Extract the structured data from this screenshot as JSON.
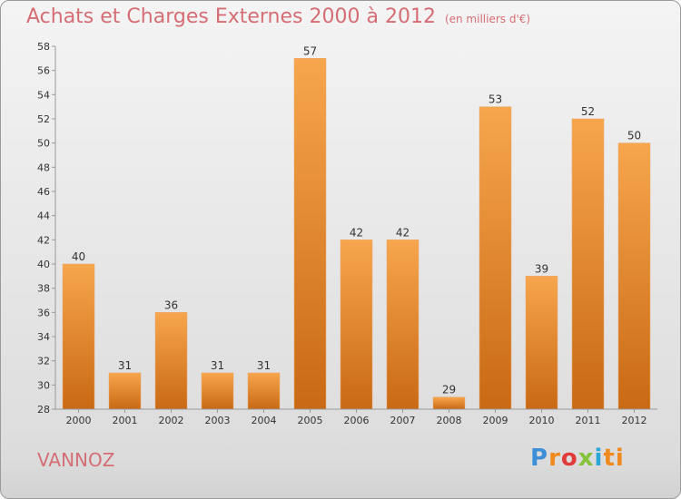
{
  "header": {
    "title": "Achats et Charges Externes 2000 à 2012",
    "subtitle": "(en milliers d'€)"
  },
  "footer": {
    "place": "VANNOZ",
    "logo": [
      "P",
      "r",
      "o",
      "x",
      "i",
      "ti"
    ]
  },
  "colors": {
    "title": "#d46e74",
    "bar_light": "#f7a64d",
    "bar_dark": "#c96914"
  },
  "chart_data": {
    "type": "bar",
    "title": "Achats et Charges Externes 2000 à 2012",
    "subtitle": "(en milliers d'€)",
    "xlabel": "",
    "ylabel": "",
    "categories": [
      "2000",
      "2001",
      "2002",
      "2003",
      "2004",
      "2005",
      "2006",
      "2007",
      "2008",
      "2009",
      "2010",
      "2011",
      "2012"
    ],
    "values": [
      40,
      31,
      36,
      31,
      31,
      57,
      42,
      42,
      29,
      53,
      39,
      52,
      50
    ],
    "ylim": [
      28,
      58
    ],
    "yticks": [
      28,
      30,
      32,
      34,
      36,
      38,
      40,
      42,
      44,
      46,
      48,
      50,
      52,
      54,
      56,
      58
    ],
    "grid": false,
    "legend": "none"
  }
}
